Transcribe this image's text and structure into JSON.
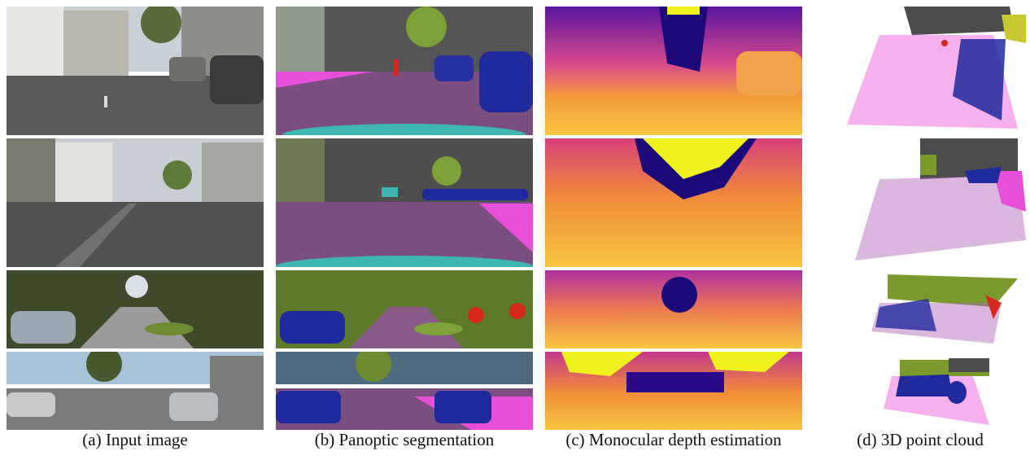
{
  "figure": {
    "captions": [
      "(a) Input image",
      "(b) Panoptic segmentation",
      "(c) Monocular depth estimation",
      "(d) 3D point cloud"
    ]
  },
  "palette": {
    "road": "#7a4f7f",
    "sidewalk": "#e84fd8",
    "car": "#1f2a9c",
    "vegetation": "#7a9a2e",
    "building": "#4c4c4c",
    "person": "#d6281f",
    "ego": "#3fb5b0",
    "depth_near": "#f3b23a",
    "depth_mid": "#e0508f",
    "depth_far": "#2b0a8a",
    "depth_sky": "#f0f21e"
  }
}
